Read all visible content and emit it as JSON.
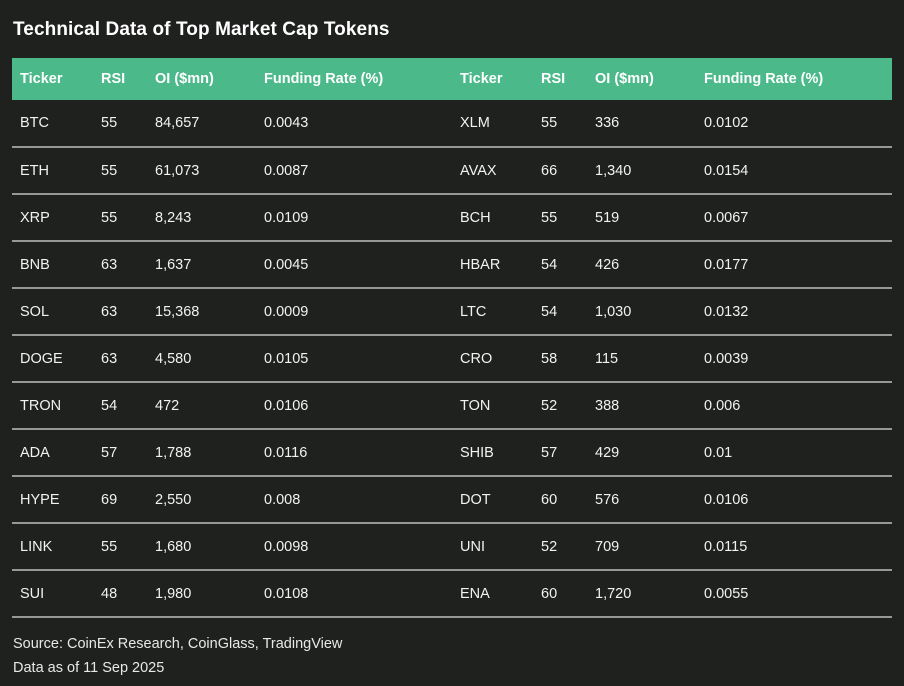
{
  "title": "Technical Data of Top Market Cap Tokens",
  "colors": {
    "page_background": "#1f211f",
    "header_background": "#4cb98a",
    "row_divider": "#979797",
    "text": "#ffffff"
  },
  "table": {
    "headers": [
      "Ticker",
      "RSI",
      "OI ($mn)",
      "Funding Rate (%)"
    ],
    "left_rows": [
      {
        "ticker": "BTC",
        "rsi": "55",
        "oi": "84,657",
        "funding": "0.0043"
      },
      {
        "ticker": "ETH",
        "rsi": "55",
        "oi": "61,073",
        "funding": "0.0087"
      },
      {
        "ticker": "XRP",
        "rsi": "55",
        "oi": "8,243",
        "funding": "0.0109"
      },
      {
        "ticker": "BNB",
        "rsi": "63",
        "oi": "1,637",
        "funding": "0.0045"
      },
      {
        "ticker": "SOL",
        "rsi": "63",
        "oi": "15,368",
        "funding": "0.0009"
      },
      {
        "ticker": "DOGE",
        "rsi": "63",
        "oi": "4,580",
        "funding": "0.0105"
      },
      {
        "ticker": "TRON",
        "rsi": "54",
        "oi": "472",
        "funding": "0.0106"
      },
      {
        "ticker": "ADA",
        "rsi": "57",
        "oi": "1,788",
        "funding": "0.0116"
      },
      {
        "ticker": "HYPE",
        "rsi": "69",
        "oi": "2,550",
        "funding": "0.008"
      },
      {
        "ticker": "LINK",
        "rsi": "55",
        "oi": "1,680",
        "funding": "0.0098"
      },
      {
        "ticker": "SUI",
        "rsi": "48",
        "oi": "1,980",
        "funding": "0.0108"
      }
    ],
    "right_rows": [
      {
        "ticker": "XLM",
        "rsi": "55",
        "oi": "336",
        "funding": "0.0102"
      },
      {
        "ticker": "AVAX",
        "rsi": "66",
        "oi": "1,340",
        "funding": "0.0154"
      },
      {
        "ticker": "BCH",
        "rsi": "55",
        "oi": "519",
        "funding": "0.0067"
      },
      {
        "ticker": "HBAR",
        "rsi": "54",
        "oi": "426",
        "funding": "0.0177"
      },
      {
        "ticker": "LTC",
        "rsi": "54",
        "oi": "1,030",
        "funding": "0.0132"
      },
      {
        "ticker": "CRO",
        "rsi": "58",
        "oi": "115",
        "funding": "0.0039"
      },
      {
        "ticker": "TON",
        "rsi": "52",
        "oi": "388",
        "funding": "0.006"
      },
      {
        "ticker": "SHIB",
        "rsi": "57",
        "oi": "429",
        "funding": "0.01"
      },
      {
        "ticker": "DOT",
        "rsi": "60",
        "oi": "576",
        "funding": "0.0106"
      },
      {
        "ticker": "UNI",
        "rsi": "52",
        "oi": "709",
        "funding": "0.0115"
      },
      {
        "ticker": "ENA",
        "rsi": "60",
        "oi": "1,720",
        "funding": "0.0055"
      }
    ]
  },
  "footer": {
    "source": "Source: CoinEx Research, CoinGlass, TradingView",
    "as_of": "Data as of 11 Sep 2025"
  },
  "chart_data": {
    "type": "table",
    "title": "Technical Data of Top Market Cap Tokens",
    "columns": [
      "Ticker",
      "RSI",
      "OI ($mn)",
      "Funding Rate (%)"
    ],
    "rows": [
      [
        "BTC",
        55,
        84657,
        0.0043
      ],
      [
        "ETH",
        55,
        61073,
        0.0087
      ],
      [
        "XRP",
        55,
        8243,
        0.0109
      ],
      [
        "BNB",
        63,
        1637,
        0.0045
      ],
      [
        "SOL",
        63,
        15368,
        0.0009
      ],
      [
        "DOGE",
        63,
        4580,
        0.0105
      ],
      [
        "TRON",
        54,
        472,
        0.0106
      ],
      [
        "ADA",
        57,
        1788,
        0.0116
      ],
      [
        "HYPE",
        69,
        2550,
        0.008
      ],
      [
        "LINK",
        55,
        1680,
        0.0098
      ],
      [
        "SUI",
        48,
        1980,
        0.0108
      ],
      [
        "XLM",
        55,
        336,
        0.0102
      ],
      [
        "AVAX",
        66,
        1340,
        0.0154
      ],
      [
        "BCH",
        55,
        519,
        0.0067
      ],
      [
        "HBAR",
        54,
        426,
        0.0177
      ],
      [
        "LTC",
        54,
        1030,
        0.0132
      ],
      [
        "CRO",
        58,
        115,
        0.0039
      ],
      [
        "TON",
        52,
        388,
        0.006
      ],
      [
        "SHIB",
        57,
        429,
        0.01
      ],
      [
        "DOT",
        60,
        576,
        0.0106
      ],
      [
        "UNI",
        52,
        709,
        0.0115
      ],
      [
        "ENA",
        60,
        1720,
        0.0055
      ]
    ],
    "layout": "two side-by-side column groups, 11 rows each, left group first",
    "source": "Source: CoinEx Research, CoinGlass, TradingView",
    "as_of": "Data as of 11 Sep 2025"
  }
}
